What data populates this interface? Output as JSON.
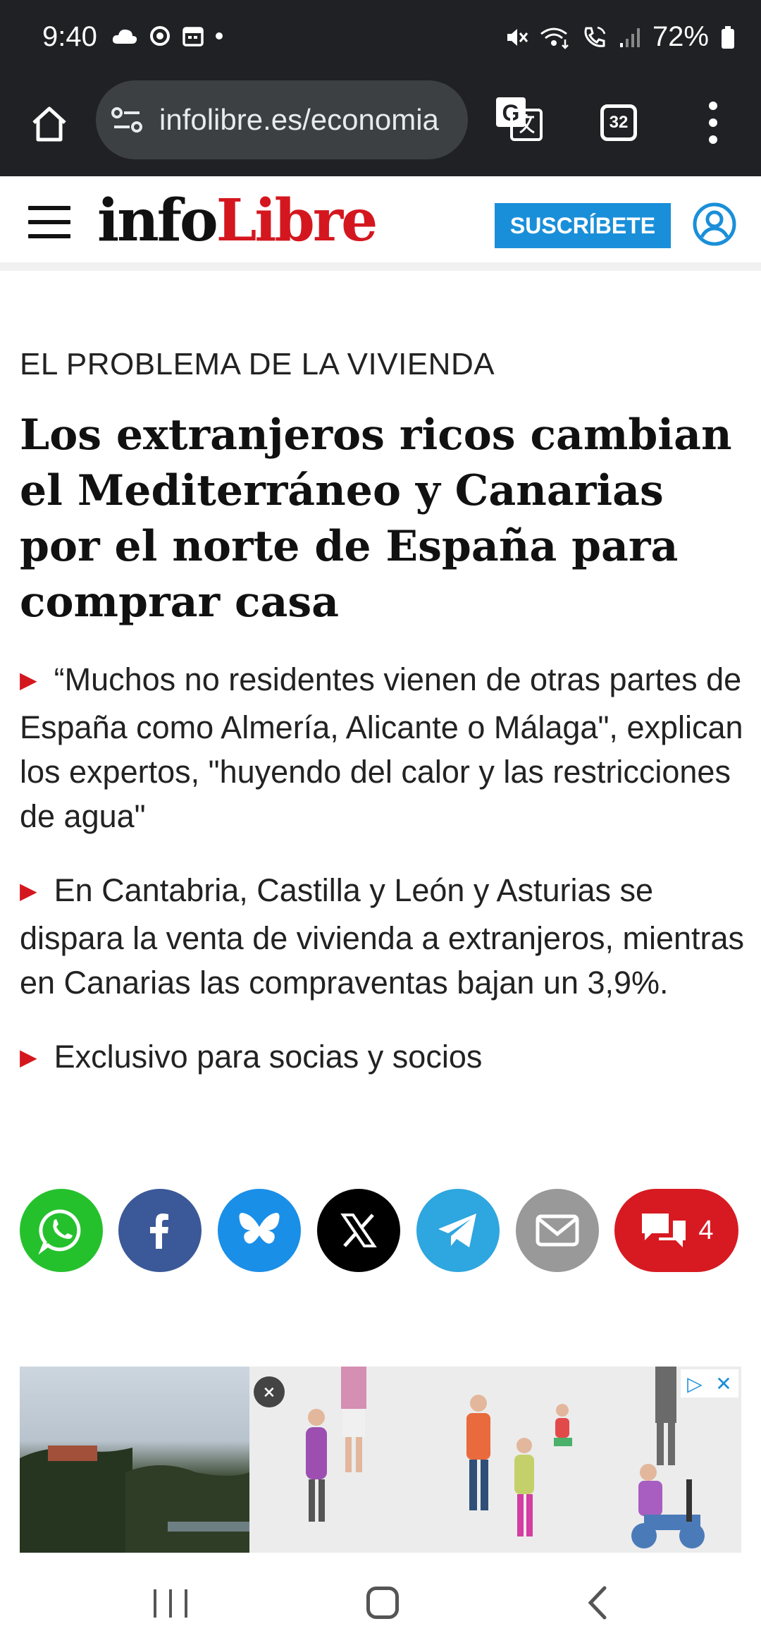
{
  "status_bar": {
    "time": "9:40",
    "battery": "72%",
    "left_icons": [
      "cloud-icon",
      "flower-icon",
      "calendar-icon",
      "dot-icon"
    ],
    "right_icons": [
      "mute-icon",
      "wifi-calling-icon",
      "wifi-call-icon",
      "signal-icon",
      "battery-icon"
    ]
  },
  "browser": {
    "url": "infolibre.es/economia",
    "tab_count": "32"
  },
  "site": {
    "logo_info": "info",
    "logo_libre": "Libre",
    "subscribe_label": "SUSCRÍBETE",
    "brand_color": "#d4171f",
    "accent_color": "#1a8fd9"
  },
  "article": {
    "kicker": "EL PROBLEMA DE LA VIVIENDA",
    "headline": "Los extranjeros ricos cambian el Mediterráneo y Canarias por el norte de España para comprar casa",
    "bullets": [
      "“Muchos no residentes vienen de otras partes de España como Almería, Alicante o Málaga\", explican los expertos, \"huyendo del calor y las restricciones de agua\"",
      "En Cantabria, Castilla y León y Asturias se dispara la venta de vivienda a extranjeros, mientras en Canarias las compraventas bajan un 3,9%.",
      "Exclusivo para socias y socios"
    ]
  },
  "share": {
    "buttons": [
      "whatsapp-icon",
      "facebook-icon",
      "bluesky-icon",
      "x-icon",
      "telegram-icon",
      "email-icon"
    ],
    "comment_count": "4"
  }
}
